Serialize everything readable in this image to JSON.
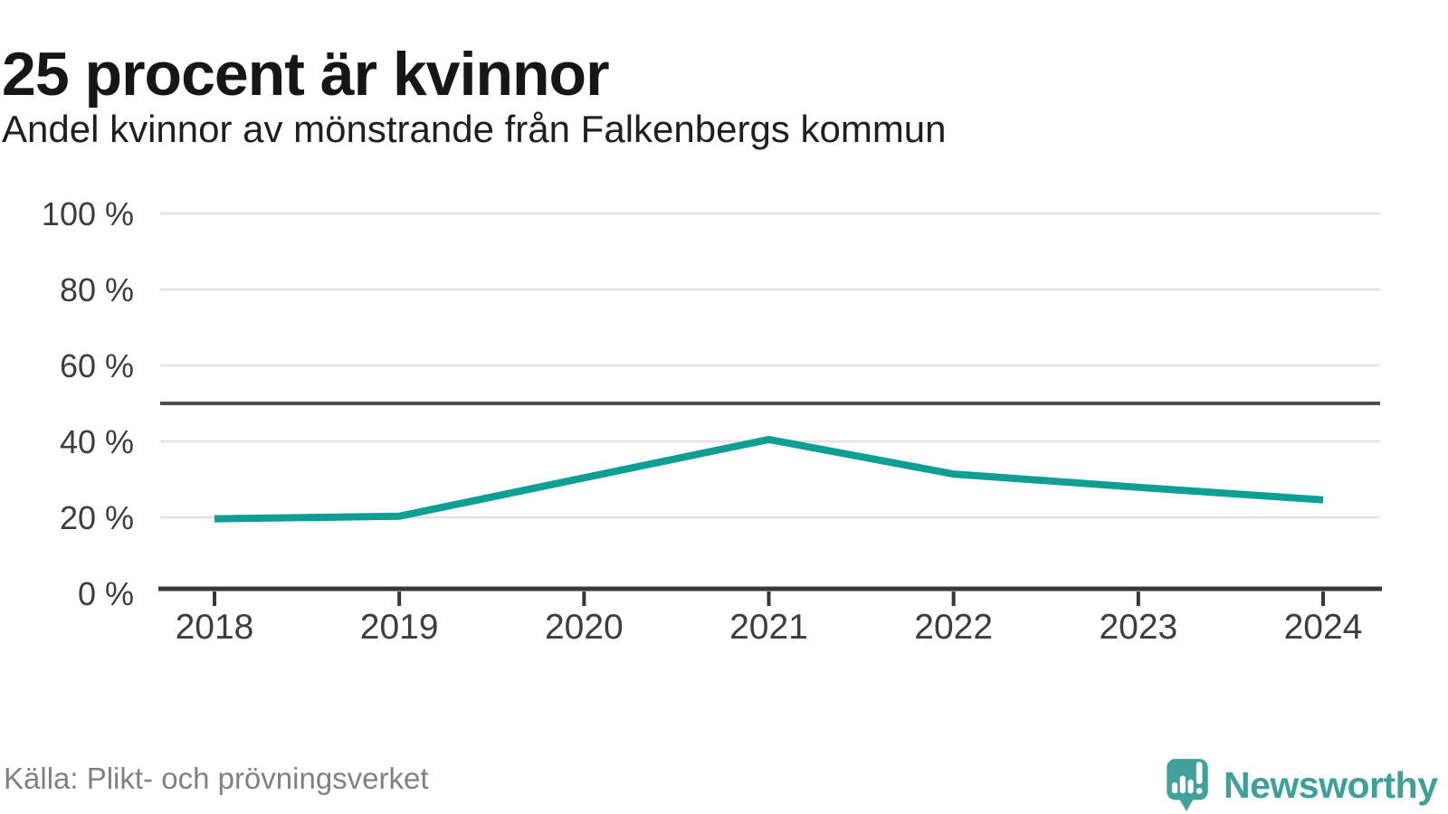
{
  "header": {
    "title": "25 procent är kvinnor",
    "subtitle": "Andel kvinnor av mönstrande från Falkenbergs kommun"
  },
  "chart_data": {
    "type": "line",
    "title": "25 procent är kvinnor",
    "subtitle": "Andel kvinnor av mönstrande från Falkenbergs kommun",
    "categories": [
      "2018",
      "2019",
      "2020",
      "2021",
      "2022",
      "2023",
      "2024"
    ],
    "series": [
      {
        "name": "Andel kvinnor av mönstrande",
        "values": [
          19.6,
          20.3,
          30.4,
          40.5,
          31.4,
          27.9,
          24.6
        ]
      }
    ],
    "xlabel": "",
    "ylabel": "",
    "ylim": [
      0,
      100
    ],
    "y_ticks": [
      0,
      20,
      40,
      60,
      80,
      100
    ],
    "y_tick_labels": [
      "0 %",
      "20 %",
      "40 %",
      "60 %",
      "80 %",
      "100 %"
    ],
    "reference_line": {
      "value": 50
    },
    "grid": true,
    "legend": false
  },
  "footer": {
    "source": "Källa: Plikt- och prövningsverket",
    "brand_name": "Newsworthy",
    "logo_icon": "speech-bubble-bar-chart-exclamation"
  },
  "colors": {
    "line": "#0d9e94",
    "grid": "#e2e2e2",
    "axis": "#383838",
    "reference_line": "#4f4f4f",
    "tick_label": "#3d3d3d",
    "title_text": "#161616",
    "source_text": "#818181",
    "brand_teal": "#3f9f99"
  }
}
